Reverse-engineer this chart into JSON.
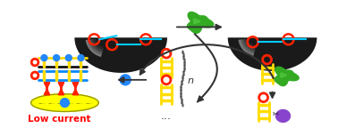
{
  "fig_width": 3.78,
  "fig_height": 1.44,
  "dpi": 100,
  "bg_color": "#ffffff",
  "low_current_text": "Low current",
  "low_current_color": "#ff0000",
  "n_text": "n",
  "electrode_color": "#ffff00",
  "electrode_outline": "#cccc00",
  "dna_yellow": "#ffdd00",
  "dna_blue": "#0088ff",
  "dna_black": "#111111",
  "dna_red": "#ff2200",
  "dna_cyan": "#00ccff",
  "aptamer_green": "#33aa22",
  "enzyme_purple": "#8844cc",
  "arrow_color": "#333333",
  "sphere_dark": "#1a1a1a",
  "sphere_mid": "#555555",
  "sphere_light": "#bbbbbb",
  "particle_blue": "#2288ff",
  "scissors_color": "#222222"
}
